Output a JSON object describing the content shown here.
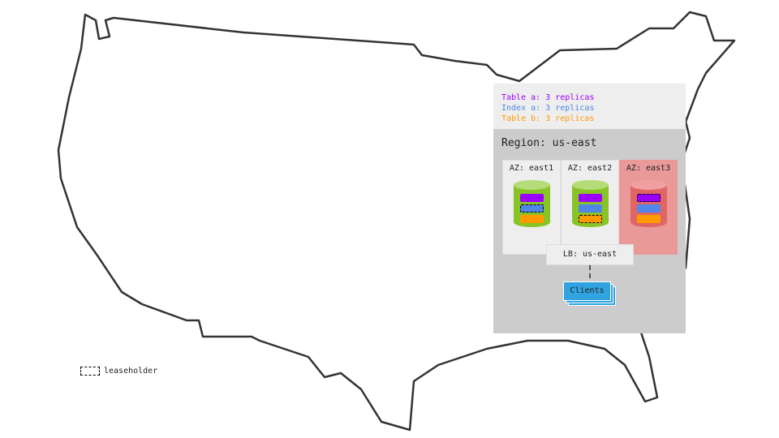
{
  "legend": {
    "items": [
      {
        "label": "Table a: 3 replicas",
        "color": "#9b00ff"
      },
      {
        "label": "Index a: 3 replicas",
        "color": "#4f86e8"
      },
      {
        "label": "Table b: 3 replicas",
        "color": "#ff9a00"
      }
    ],
    "leaseholder_label": "leaseholder"
  },
  "region": {
    "label": "Region: us-east",
    "zones": [
      {
        "label": "AZ: east1",
        "status": "healthy",
        "leaseholder": "Index a"
      },
      {
        "label": "AZ: east2",
        "status": "healthy",
        "leaseholder": "Table b"
      },
      {
        "label": "AZ: east3",
        "status": "failed",
        "leaseholder": "Table a"
      }
    ],
    "load_balancer": "LB: us-east",
    "clients": "Clients"
  },
  "colors": {
    "healthy_node": "#88c425",
    "failed_node": "#e06666",
    "failed_zone": "#ea9999",
    "clients": "#31a3e0"
  }
}
